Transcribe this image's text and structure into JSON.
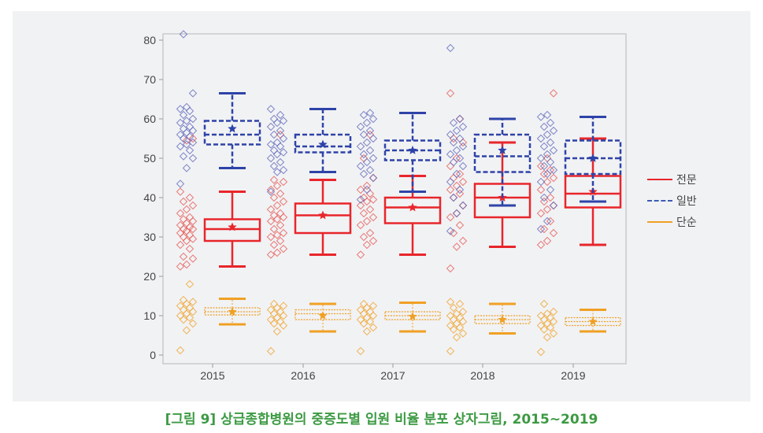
{
  "caption": "[그림 9] 상급종합병원의 중증도별 입원 비율 분포 상자그림, 2015~2019",
  "chart_data": {
    "type": "box",
    "title": "",
    "xlabel": "",
    "ylabel": "",
    "ylim": [
      0,
      80
    ],
    "yticks": [
      0,
      10,
      20,
      30,
      40,
      50,
      60,
      70,
      80
    ],
    "categories": [
      "2015",
      "2016",
      "2017",
      "2018",
      "2019"
    ],
    "grid": false,
    "legend_position": "right",
    "series": [
      {
        "name": "전문",
        "color": "#e8262b",
        "line_style": "solid",
        "boxes": [
          {
            "year": "2015",
            "whisker_low": 22.5,
            "q1": 29,
            "median": 32,
            "q3": 34.5,
            "whisker_high": 41.5,
            "mean": 32.5
          },
          {
            "year": "2016",
            "whisker_low": 25.5,
            "q1": 31,
            "median": 35.5,
            "q3": 38.5,
            "whisker_high": 44.5,
            "mean": 35.5
          },
          {
            "year": "2017",
            "whisker_low": 25.5,
            "q1": 33.5,
            "median": 37.5,
            "q3": 40,
            "whisker_high": 45.5,
            "mean": 37.5
          },
          {
            "year": "2018",
            "whisker_low": 27.5,
            "q1": 35,
            "median": 40,
            "q3": 43.5,
            "whisker_high": 54,
            "mean": 40
          },
          {
            "year": "2019",
            "whisker_low": 28,
            "q1": 37.5,
            "median": 41,
            "q3": 45.5,
            "whisker_high": 55,
            "mean": 41.5
          }
        ],
        "points": [
          [
            22.5,
            23,
            24.5,
            25,
            27,
            28,
            29,
            29.5,
            30,
            30.5,
            31,
            31.5,
            32,
            32,
            32.5,
            33,
            33.5,
            34,
            34.5,
            35,
            36,
            37,
            38,
            39,
            40,
            41.5,
            54.5,
            55
          ],
          [
            25.5,
            26,
            27,
            28,
            29,
            30,
            30.5,
            31,
            32,
            33,
            34,
            34.5,
            35,
            35.5,
            36,
            37,
            38,
            39,
            40,
            41,
            42,
            43,
            44,
            44.5,
            56
          ],
          [
            25.5,
            28,
            29,
            30,
            31,
            33,
            34,
            35,
            36,
            37,
            38,
            39,
            39.5,
            40,
            41,
            42,
            43,
            45,
            50,
            56
          ],
          [
            22,
            27.5,
            29,
            31,
            33,
            35,
            36,
            38,
            40,
            41,
            42,
            43,
            44,
            45,
            46,
            48,
            50,
            54,
            55,
            60,
            66.5
          ],
          [
            28,
            29,
            31,
            32,
            34,
            36,
            37,
            38,
            39,
            40,
            42,
            44,
            45,
            46,
            47,
            48,
            50,
            66.5
          ]
        ]
      },
      {
        "name": "일반",
        "color": "#2e43a8",
        "line_style": "dashed",
        "boxes": [
          {
            "year": "2015",
            "whisker_low": 47.5,
            "q1": 53.5,
            "median": 56,
            "q3": 59.5,
            "whisker_high": 66.5,
            "mean": 57.5
          },
          {
            "year": "2016",
            "whisker_low": 46.5,
            "q1": 51.5,
            "median": 53,
            "q3": 56,
            "whisker_high": 62.5,
            "mean": 53.5
          },
          {
            "year": "2017",
            "whisker_low": 41.5,
            "q1": 49.5,
            "median": 52,
            "q3": 54.5,
            "whisker_high": 61.5,
            "mean": 52
          },
          {
            "year": "2018",
            "whisker_low": 38,
            "q1": 46.5,
            "median": 50.5,
            "q3": 56,
            "whisker_high": 60,
            "mean": 52
          },
          {
            "year": "2019",
            "whisker_low": 39,
            "q1": 46,
            "median": 50,
            "q3": 54.5,
            "whisker_high": 60.5,
            "mean": 50
          }
        ],
        "points": [
          [
            43.5,
            47.5,
            50,
            50.5,
            52,
            53,
            53.5,
            54,
            55,
            55.5,
            56,
            56.5,
            57,
            57.5,
            58,
            59,
            59.5,
            60,
            61,
            62,
            62.5,
            63,
            66.5,
            81.5
          ],
          [
            41.5,
            46.5,
            47,
            48,
            49,
            50,
            51,
            51.5,
            52,
            53,
            53.5,
            54,
            55,
            56,
            57,
            58,
            59,
            59.5,
            60,
            61,
            62.5
          ],
          [
            39.5,
            42,
            45,
            46,
            47,
            48,
            49,
            50,
            51,
            52,
            53,
            54,
            55,
            56,
            57,
            58,
            59,
            60,
            61,
            61.5
          ],
          [
            31.5,
            36,
            38,
            40,
            42,
            44,
            46,
            48,
            49,
            50,
            51,
            52,
            53,
            54,
            55,
            56,
            57,
            58,
            59,
            60,
            78
          ],
          [
            32,
            34,
            38,
            40,
            42,
            44,
            46,
            47,
            48,
            49,
            50,
            51,
            52,
            53,
            54,
            55,
            56,
            57,
            58,
            59,
            60.5,
            61
          ]
        ]
      },
      {
        "name": "단순",
        "color": "#f0a024",
        "line_style": "solid",
        "boxes": [
          {
            "year": "2015",
            "whisker_low": 7.8,
            "q1": 10.2,
            "median": 11,
            "q3": 12,
            "whisker_high": 14.3,
            "mean": 11
          },
          {
            "year": "2016",
            "whisker_low": 6,
            "q1": 9,
            "median": 10.5,
            "q3": 11.5,
            "whisker_high": 13,
            "mean": 10
          },
          {
            "year": "2017",
            "whisker_low": 6,
            "q1": 9,
            "median": 10,
            "q3": 11,
            "whisker_high": 13.3,
            "mean": 9.8
          },
          {
            "year": "2018",
            "whisker_low": 5.5,
            "q1": 8,
            "median": 9,
            "q3": 10,
            "whisker_high": 13,
            "mean": 9
          },
          {
            "year": "2019",
            "whisker_low": 6,
            "q1": 7.5,
            "median": 8.5,
            "q3": 9.5,
            "whisker_high": 11.5,
            "mean": 8.5
          }
        ],
        "points": [
          [
            1.2,
            6.3,
            8,
            9,
            9.5,
            10,
            10.5,
            11,
            11.5,
            12,
            12.5,
            13,
            13.5,
            14,
            18
          ],
          [
            1,
            6,
            7.5,
            8,
            8.5,
            9,
            9.5,
            10,
            10.5,
            11,
            11.5,
            12,
            12.5,
            13
          ],
          [
            1,
            6,
            7,
            8,
            8.5,
            9,
            9.5,
            10,
            10.5,
            11,
            11.5,
            12,
            12.5,
            13
          ],
          [
            1,
            4.5,
            5.5,
            6.5,
            7,
            7.5,
            8,
            8.5,
            9,
            9.5,
            10,
            10.5,
            11,
            12,
            13,
            13.5
          ],
          [
            0.8,
            4.5,
            5.5,
            6.5,
            7,
            7.5,
            8,
            8.5,
            9,
            9.5,
            10,
            10.5,
            11,
            13
          ]
        ]
      }
    ]
  },
  "legend": [
    {
      "label": "전문",
      "color": "#e8262b",
      "style": "solid"
    },
    {
      "label": "일반",
      "color": "#3b5cb0",
      "style": "dashed"
    },
    {
      "label": "단순",
      "color": "#f0a024",
      "style": "solid"
    }
  ]
}
